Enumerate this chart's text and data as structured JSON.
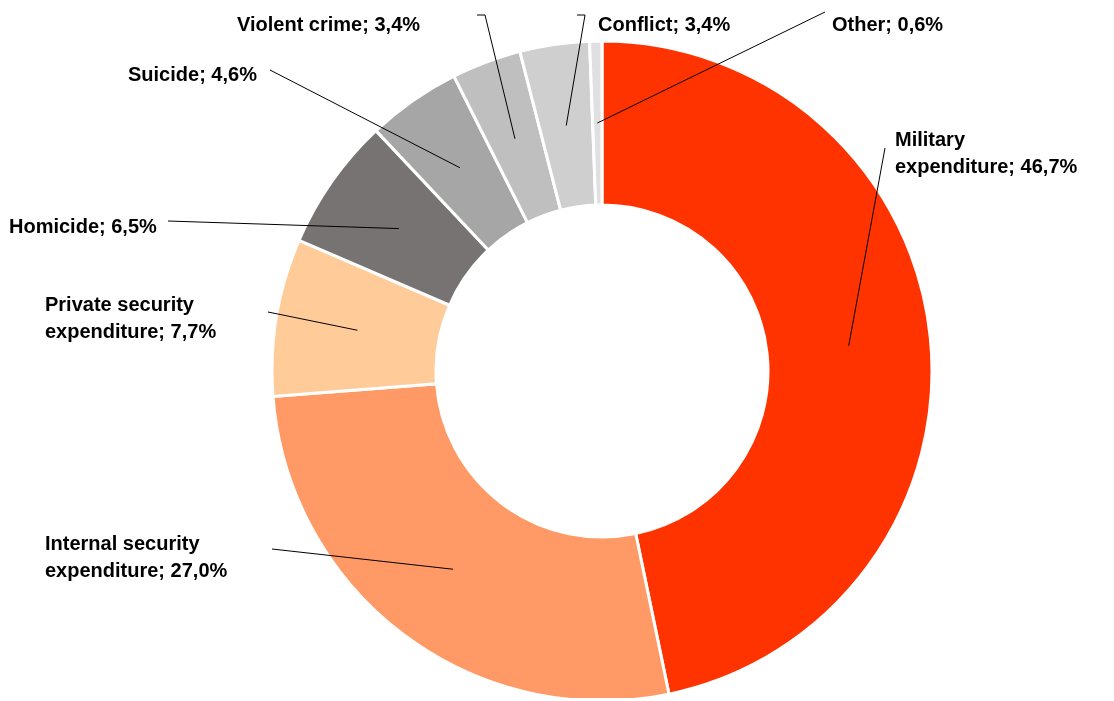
{
  "chart_data": {
    "type": "donut",
    "categories": [
      "Military expenditure",
      "Internal security expenditure",
      "Private security expenditure",
      "Homicide",
      "Suicide",
      "Violent crime",
      "Conflict",
      "Other"
    ],
    "values": [
      46.7,
      27.0,
      7.7,
      6.5,
      4.6,
      3.4,
      3.4,
      0.6
    ],
    "value_labels": [
      "46,7%",
      "27,0%",
      "7,7%",
      "6,5%",
      "4,6%",
      "3,4%",
      "3,4%",
      "0,6%"
    ],
    "colors": [
      "#ff3300",
      "#ff9966",
      "#ffcc99",
      "#777372",
      "#a6a6a6",
      "#bfbfbf",
      "#d0cfcf",
      "#e0e0e0"
    ]
  }
}
